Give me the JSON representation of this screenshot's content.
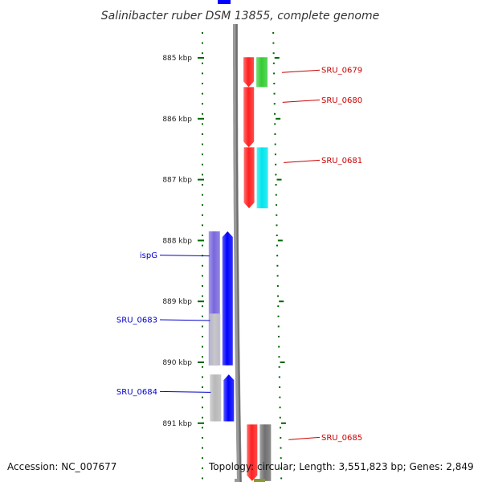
{
  "title": "Salinibacter ruber DSM 13855, complete genome",
  "footer": {
    "accession": "Accession: NC_007677",
    "summary": "Topology: circular; Length: 3,551,823 bp; Genes: 2,849"
  },
  "scale_ticks": [
    {
      "label": "885 kbp",
      "kbp": 885
    },
    {
      "label": "886 kbp",
      "kbp": 886
    },
    {
      "label": "887 kbp",
      "kbp": 887
    },
    {
      "label": "888 kbp",
      "kbp": 888
    },
    {
      "label": "889 kbp",
      "kbp": 889
    },
    {
      "label": "890 kbp",
      "kbp": 890
    },
    {
      "label": "891 kbp",
      "kbp": 891
    }
  ],
  "genes_forward": [
    {
      "label": "SRU_0679",
      "start_kbp": 884.99,
      "end_kbp": 885.48,
      "color": "#ff2020",
      "cog_color": "#33cc33"
    },
    {
      "label": "SRU_0680",
      "start_kbp": 885.48,
      "end_kbp": 886.47,
      "color": "#ff2020",
      "cog_color": ""
    },
    {
      "label": "SRU_0681",
      "start_kbp": 886.47,
      "end_kbp": 887.47,
      "color": "#ff2020",
      "cog_color": "#00e5ee"
    },
    {
      "label": "SRU_0685",
      "start_kbp": 891.02,
      "end_kbp": 891.95,
      "color": "#ff2020",
      "cog_color": "#707070"
    }
  ],
  "genes_reverse": [
    {
      "label": "ispG",
      "start_kbp": 887.85,
      "end_kbp": 890.05,
      "color": "#0000ff",
      "cog_color": "#7766dd"
    },
    {
      "label": "SRU_0683",
      "start_kbp": 889.2,
      "end_kbp": 890.05,
      "color": "#0000ff",
      "cog_color": "#c8c8c8"
    },
    {
      "label": "SRU_0684",
      "start_kbp": 890.2,
      "end_kbp": 890.97,
      "color": "#0000ff",
      "cog_color": "#b8b8b8"
    }
  ],
  "colors": {
    "forward_label": "#cc0000",
    "reverse_label": "#0000cc",
    "ruler": "#006600",
    "backbone": "#808080"
  }
}
